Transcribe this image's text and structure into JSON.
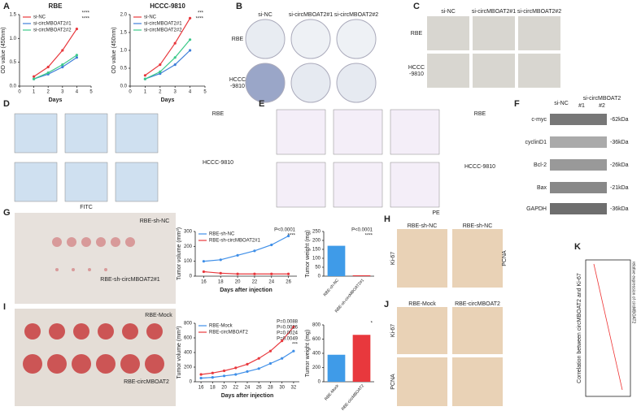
{
  "chart_data": [
    {
      "type": "line",
      "title": "RBE",
      "xlabel": "Days",
      "ylabel": "OD value (450nm)",
      "x": [
        1,
        2,
        3,
        4
      ],
      "xlim": [
        0,
        5
      ],
      "xticks": [
        0,
        1,
        2,
        3,
        4,
        5
      ],
      "ylim": [
        0,
        1.5
      ],
      "yticks": [
        {
          "value": 0,
          "label": "0.0"
        },
        0.5,
        {
          "value": 1,
          "label": "1.0"
        },
        1.5
      ],
      "legend": "upper left",
      "series": [
        {
          "name": "si-NC",
          "color": "#e8383d",
          "values": [
            0.2,
            0.4,
            0.75,
            1.2
          ]
        },
        {
          "name": "si-circMBOAT2#1",
          "color": "#3f7fd8",
          "values": [
            0.15,
            0.25,
            0.4,
            0.6
          ]
        },
        {
          "name": "si-circMBOAT2#2",
          "color": "#3cc98a",
          "values": [
            0.15,
            0.28,
            0.45,
            0.65
          ]
        }
      ],
      "annotations": [
        "****",
        "****"
      ]
    },
    {
      "type": "line",
      "title": "HCCC-9810",
      "xlabel": "Days",
      "ylabel": "OD value (450nm)",
      "x": [
        1,
        2,
        3,
        4
      ],
      "xlim": [
        0,
        5
      ],
      "xticks": [
        0,
        1,
        2,
        3,
        4,
        5
      ],
      "ylim": [
        0,
        2
      ],
      "yticks": [
        {
          "value": 0,
          "label": "0.0"
        },
        0.5,
        {
          "value": 1,
          "label": "1.0"
        },
        1.5,
        {
          "value": 2,
          "label": "2.0"
        }
      ],
      "legend": "upper left",
      "series": [
        {
          "name": "si-NC",
          "color": "#e8383d",
          "values": [
            0.3,
            0.6,
            1.2,
            1.9
          ]
        },
        {
          "name": "si-circMBOAT2#1",
          "color": "#3f7fd8",
          "values": [
            0.2,
            0.35,
            0.6,
            1.0
          ]
        },
        {
          "name": "si-circMBOAT2#2",
          "color": "#3cc98a",
          "values": [
            0.2,
            0.4,
            0.8,
            1.3
          ]
        }
      ],
      "annotations": [
        "***",
        "****"
      ]
    },
    {
      "type": "line",
      "xlabel": "Days after injection",
      "ylabel": "Tumor volume (mm³)",
      "x": [
        16,
        18,
        20,
        22,
        24,
        26
      ],
      "xlim": [
        15,
        27
      ],
      "xticks": [
        16,
        18,
        20,
        22,
        24,
        26
      ],
      "ylim": [
        0,
        300
      ],
      "yticks": [
        0,
        100,
        200,
        300
      ],
      "legend": "upper left",
      "series": [
        {
          "name": "RBE-sh-NC",
          "color": "#3f8fe8",
          "values": [
            100,
            110,
            140,
            170,
            210,
            270
          ]
        },
        {
          "name": "RBE-sh-circMBOAT2#1",
          "color": "#e8383d",
          "values": [
            30,
            20,
            15,
            15,
            15,
            15
          ]
        }
      ],
      "annotations": [
        "P<0.0001",
        "****"
      ]
    },
    {
      "type": "bar",
      "ylabel": "Tumor weight (mg)",
      "categories": [
        "RBE-sh-NC",
        "RBE-sh-circMBOAT2#1"
      ],
      "values": [
        170,
        5
      ],
      "colors": [
        "#3f9be8",
        "#e8383d"
      ],
      "ylim": [
        0,
        250
      ],
      "yticks": [
        0,
        50,
        100,
        150,
        200,
        250
      ],
      "annotations": [
        "P<0.0001",
        "****"
      ]
    },
    {
      "type": "line",
      "xlabel": "Days after injection",
      "ylabel": "Tumor volume (mm³)",
      "x": [
        16,
        18,
        20,
        22,
        24,
        26,
        28,
        30,
        32
      ],
      "xlim": [
        15,
        33
      ],
      "xticks": [
        16,
        18,
        20,
        22,
        24,
        26,
        28,
        30,
        32
      ],
      "ylim": [
        0,
        800
      ],
      "yticks": [
        0,
        200,
        400,
        600,
        800
      ],
      "legend": "upper left",
      "series": [
        {
          "name": "RBE-Mock",
          "color": "#3f8fe8",
          "values": [
            50,
            60,
            80,
            100,
            140,
            180,
            250,
            320,
            420
          ]
        },
        {
          "name": "RBE-circMBOAT2",
          "color": "#e8383d",
          "values": [
            100,
            120,
            150,
            190,
            240,
            320,
            420,
            560,
            750
          ]
        }
      ],
      "annotations": [
        "P=0.0088",
        "P=0.0026",
        "P=0.0024",
        "P=0.0049",
        "***"
      ]
    },
    {
      "type": "bar",
      "ylabel": "Tumor weight (mg)",
      "categories": [
        "RBE-Mock",
        "RBE-circMBOAT2"
      ],
      "values": [
        380,
        660
      ],
      "colors": [
        "#3f9be8",
        "#e8383d"
      ],
      "ylim": [
        0,
        800
      ],
      "yticks": [
        0,
        200,
        400,
        600,
        800
      ],
      "annotations": [
        "*"
      ]
    }
  ],
  "figure": {
    "letters": [
      "A",
      "B",
      "C",
      "D",
      "E",
      "F",
      "G",
      "H",
      "I",
      "J",
      "K"
    ],
    "B": {
      "cols": [
        "si-NC",
        "si-circMBOAT2#1",
        "si-circMBOAT2#2"
      ],
      "rows": [
        "RBE",
        "HCCC",
        "-9810"
      ]
    },
    "C": {
      "cols": [
        "si-NC",
        "si-circMBOAT2#1",
        "si-circMBOAT2#2"
      ],
      "rows": [
        "RBE",
        "HCCC",
        "-9810"
      ]
    },
    "D": {
      "titles": [
        "RBE",
        "HCCC-9810"
      ],
      "axis": "FITC"
    },
    "E": {
      "titles": [
        "RBE",
        "HCCC-9810"
      ],
      "axis": "PE"
    },
    "F": {
      "header": [
        "si-NC",
        "si-circMBOAT2",
        "#1",
        "#2"
      ],
      "proteins": [
        "c-myc",
        "cyclinD1",
        "Bcl-2",
        "Bax",
        "GAPDH"
      ],
      "kda": [
        "-62kDa",
        "-36kDa",
        "-26kDa",
        "-21kDa",
        "-36kDa"
      ]
    },
    "G": {
      "labels": [
        "RBE-sh-NC",
        "RBE-sh-circMBOAT2#1"
      ]
    },
    "H": {
      "labels": [
        "RBE-sh-NC",
        "RBE-sh-NC",
        "Ki-67",
        "PCNA"
      ]
    },
    "I": {
      "labels": [
        "RBE-Mock",
        "RBE-circMBOAT2"
      ]
    },
    "J": {
      "labels": [
        "RBE-Mock",
        "RBE-circMBOAT2",
        "Ki-67",
        "PCNA"
      ]
    },
    "K": {
      "xlabel": "Correlation between circMBOAT2 and Ki-67",
      "ylabel": "relative expression of circMBOAT2"
    }
  }
}
